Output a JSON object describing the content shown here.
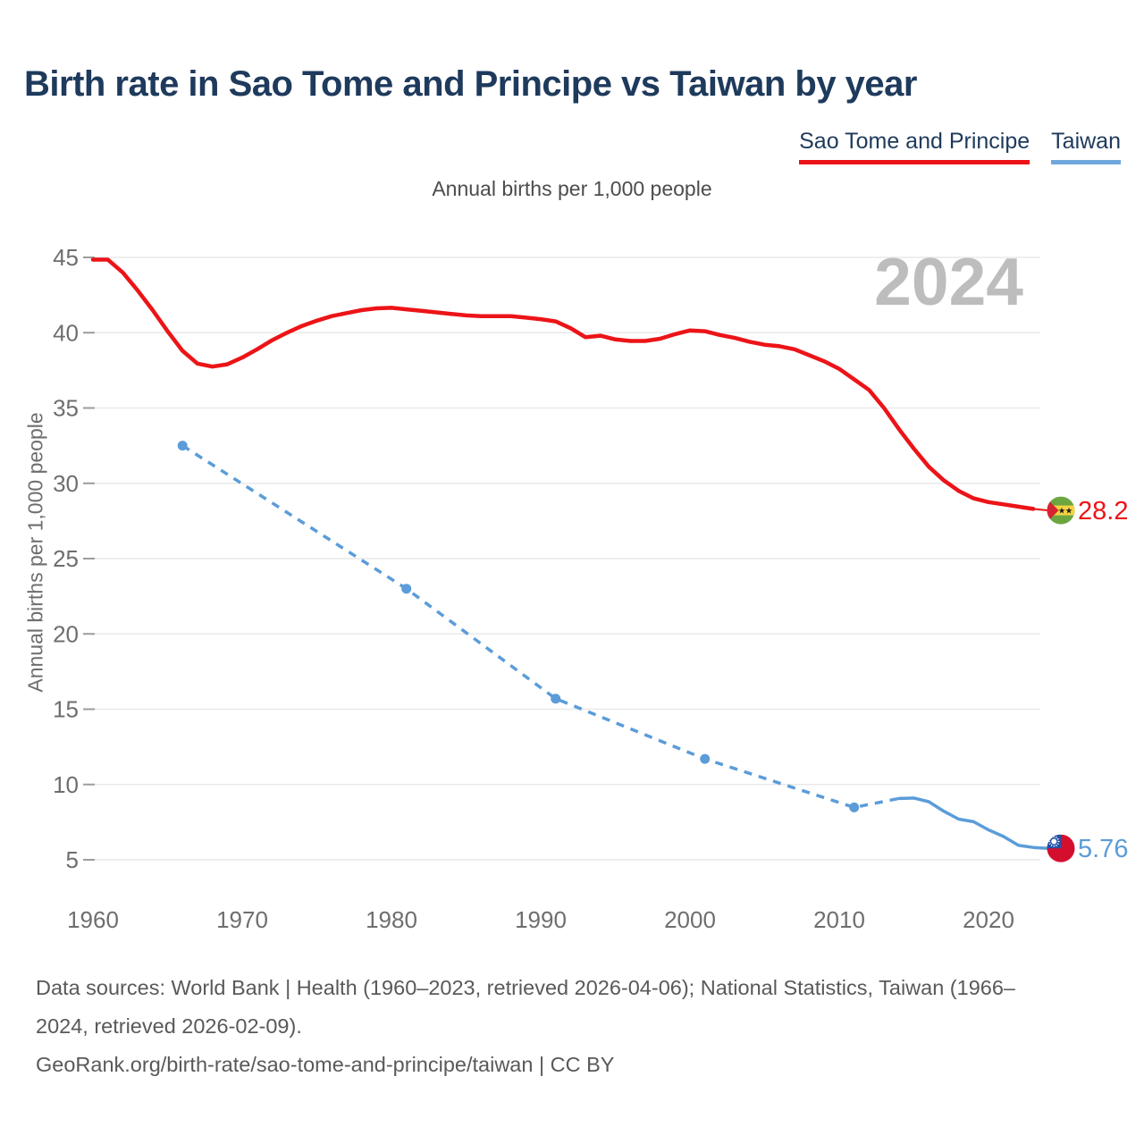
{
  "title": "Birth rate in Sao Tome and Principe vs Taiwan by year",
  "subtitle": "Annual births per 1,000 people",
  "y_axis_title": "Annual births per 1,000 people",
  "legend": [
    {
      "label": "Sao Tome and Principe",
      "color": "#ec1418"
    },
    {
      "label": "Taiwan",
      "color": "#6fa8dc"
    }
  ],
  "footer": {
    "lines": [
      "Data sources: World Bank | Health (1960–2023, retrieved 2026-04-06); National Statistics, Taiwan (1966–",
      "2024, retrieved 2026-02-09).",
      "GeoRank.org/birth-rate/sao-tome-and-principe/taiwan | CC BY"
    ]
  },
  "colors": {
    "sao_tome_red": "#ec1418",
    "taiwan_blue": "#5b9cd9",
    "taiwan_underline": "#6fa8dc",
    "title_navy": "#1e3a5c",
    "axis_text": "#6e6e6e",
    "gridline": "#e9e9e9",
    "tick": "#9c9c9c",
    "watermark": "#bdbdbd"
  },
  "chart_data": {
    "type": "line",
    "title": "Birth rate in Sao Tome and Principe vs Taiwan by year",
    "subtitle": "Annual births per 1,000 people",
    "ylabel": "Annual births per 1,000 people",
    "watermark": "2024",
    "grid": true,
    "x_ticks": [
      1960,
      1970,
      1980,
      1990,
      2000,
      2010,
      2020
    ],
    "y_ticks": [
      45,
      40,
      35,
      30,
      25,
      20,
      15,
      10,
      5
    ],
    "x_range": [
      1960,
      2024
    ],
    "y_range": [
      5,
      45
    ],
    "series": [
      {
        "name": "Sao Tome and Principe",
        "color": "#ec1418",
        "style": "solid",
        "start_year": 1960,
        "values": [
          44.85,
          44.85,
          44.0,
          42.8,
          41.5,
          40.1,
          38.8,
          37.95,
          37.75,
          37.9,
          38.35,
          38.9,
          39.5,
          40.0,
          40.45,
          40.8,
          41.1,
          41.3,
          41.5,
          41.62,
          41.65,
          41.55,
          41.45,
          41.35,
          41.25,
          41.15,
          41.1,
          41.1,
          41.1,
          41.0,
          40.9,
          40.75,
          40.3,
          39.7,
          39.8,
          39.55,
          39.45,
          39.45,
          39.6,
          39.9,
          40.15,
          40.1,
          39.85,
          39.65,
          39.4,
          39.2,
          39.1,
          38.9,
          38.5,
          38.1,
          37.6,
          36.9,
          36.2,
          35.0,
          33.6,
          32.3,
          31.1,
          30.2,
          29.5,
          29.0,
          28.75,
          28.6,
          28.45,
          28.3
        ],
        "end_year_value": [
          2024,
          28.2
        ],
        "end_label": "28.2"
      },
      {
        "name": "Taiwan",
        "color": "#5b9cd9",
        "style": "dashed-then-solid",
        "dashed_points": [
          [
            1966,
            32.5
          ],
          [
            1981,
            23.0
          ],
          [
            1991,
            15.7
          ],
          [
            2001,
            11.7
          ],
          [
            2011,
            8.48
          ],
          [
            2014,
            9.07
          ]
        ],
        "marker_points": [
          [
            1966,
            32.5
          ],
          [
            1981,
            23.0
          ],
          [
            1991,
            15.7
          ],
          [
            2001,
            11.7
          ],
          [
            2011,
            8.48
          ]
        ],
        "solid_points": [
          [
            2014,
            9.07
          ],
          [
            2015,
            9.1
          ],
          [
            2016,
            8.86
          ],
          [
            2017,
            8.23
          ],
          [
            2018,
            7.7
          ],
          [
            2019,
            7.53
          ],
          [
            2020,
            6.99
          ],
          [
            2021,
            6.55
          ],
          [
            2022,
            5.96
          ],
          [
            2023,
            5.82
          ],
          [
            2024,
            5.76
          ]
        ],
        "end_year_value": [
          2024,
          5.76
        ],
        "end_label": "5.76"
      }
    ]
  }
}
